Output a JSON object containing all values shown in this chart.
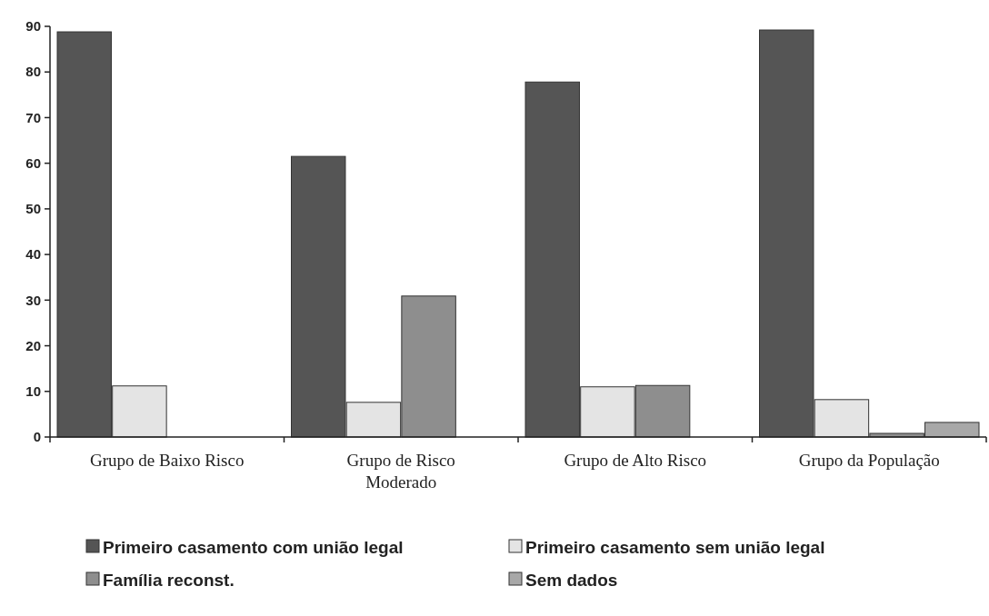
{
  "chart_data": {
    "type": "bar",
    "categories": [
      "Grupo de Baixo Risco",
      "Grupo de Risco Moderado",
      "Grupo de Alto Risco",
      "Grupo da População"
    ],
    "series": [
      {
        "name": "Primeiro casamento com união legal",
        "color": "#555555",
        "values": [
          88.8,
          61.5,
          77.8,
          89.2
        ]
      },
      {
        "name": "Primeiro casamento sem união legal",
        "color": "#e4e4e4",
        "values": [
          11.2,
          7.6,
          11,
          8.2
        ]
      },
      {
        "name": "Família reconst.",
        "color": "#8e8e8e",
        "values": [
          0,
          30.9,
          11.3,
          0.8
        ]
      },
      {
        "name": "Sem dados",
        "color": "#a8a8a8",
        "values": [
          0,
          0,
          0,
          3.2
        ]
      }
    ],
    "ylim": [
      0,
      90
    ],
    "yticks": [
      0,
      10,
      20,
      30,
      40,
      50,
      60,
      70,
      80,
      90
    ],
    "grid": false,
    "legend": "bottom"
  }
}
